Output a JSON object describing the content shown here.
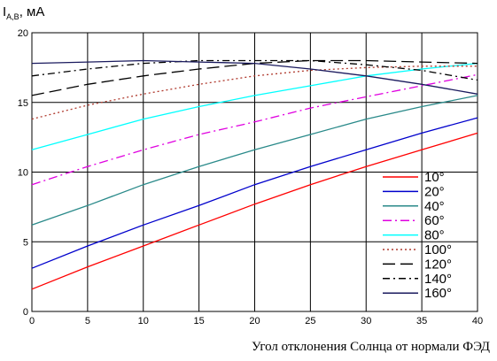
{
  "chart_data": {
    "type": "line",
    "ylabel_main": "I",
    "ylabel_sub": "A,B",
    "ylabel_unit": ", мА",
    "xlabel": "Угол отклонения Солнца от нормали ФЭД",
    "xlim": [
      0,
      40
    ],
    "ylim": [
      0,
      20
    ],
    "x_ticks": [
      0,
      5,
      10,
      15,
      20,
      25,
      30,
      35,
      40
    ],
    "y_ticks": [
      0,
      5,
      10,
      15,
      20
    ],
    "grid": true,
    "legend_position": "bottom-right",
    "x": [
      0,
      5,
      10,
      15,
      20,
      25,
      30,
      35,
      40
    ],
    "series": [
      {
        "name": "10°",
        "color": "#ff0000",
        "dash": "solid",
        "values": [
          1.6,
          3.2,
          4.7,
          6.2,
          7.7,
          9.1,
          10.4,
          11.6,
          12.8
        ]
      },
      {
        "name": "20°",
        "color": "#0000cc",
        "dash": "solid",
        "values": [
          3.1,
          4.7,
          6.2,
          7.6,
          9.1,
          10.4,
          11.6,
          12.8,
          13.9
        ]
      },
      {
        "name": "40°",
        "color": "#2a8a8a",
        "dash": "solid",
        "values": [
          6.2,
          7.6,
          9.1,
          10.4,
          11.6,
          12.7,
          13.8,
          14.7,
          15.5
        ]
      },
      {
        "name": "60°",
        "color": "#e000e0",
        "dash": "dashdot",
        "values": [
          9.1,
          10.4,
          11.6,
          12.7,
          13.6,
          14.6,
          15.4,
          16.2,
          17.0
        ]
      },
      {
        "name": "80°",
        "color": "#00ffff",
        "dash": "solid",
        "values": [
          11.6,
          12.7,
          13.8,
          14.7,
          15.5,
          16.2,
          16.9,
          17.4,
          17.8
        ]
      },
      {
        "name": "100°",
        "color": "#b03a2e",
        "dash": "dotted",
        "values": [
          13.8,
          14.8,
          15.6,
          16.3,
          16.9,
          17.3,
          17.5,
          17.6,
          17.6
        ]
      },
      {
        "name": "120°",
        "color": "#000000",
        "dash": "longdash",
        "values": [
          15.5,
          16.3,
          16.9,
          17.4,
          17.8,
          18.0,
          18.0,
          17.9,
          17.8
        ]
      },
      {
        "name": "140°",
        "color": "#000000",
        "dash": "dashdot2",
        "values": [
          16.9,
          17.4,
          17.8,
          18.0,
          18.0,
          18.0,
          17.7,
          17.3,
          16.6
        ]
      },
      {
        "name": "160°",
        "color": "#1a1a5e",
        "dash": "solid",
        "values": [
          17.8,
          17.9,
          18.0,
          17.9,
          17.8,
          17.4,
          16.9,
          16.3,
          15.6
        ]
      }
    ]
  }
}
